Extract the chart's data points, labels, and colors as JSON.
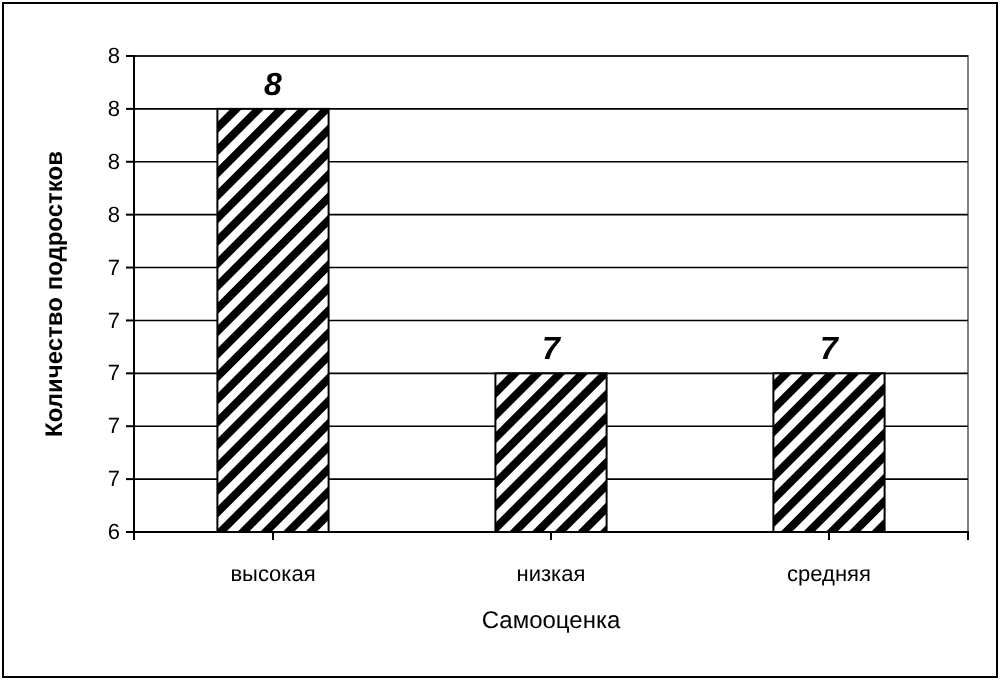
{
  "chart_data": {
    "type": "bar",
    "xlabel": "Самооценка",
    "ylabel": "Количество подростков",
    "categories": [
      "высокая",
      "низкая",
      "средняя"
    ],
    "values": [
      8,
      7,
      7
    ],
    "color": "#000000",
    "ylim": [
      6.4,
      8.2
    ],
    "yticks": [
      {
        "value": 6.4,
        "label": "6"
      },
      {
        "value": 6.6,
        "label": "7"
      },
      {
        "value": 6.8,
        "label": "7"
      },
      7,
      {
        "value": 7.2,
        "label": "7"
      },
      {
        "value": 7.4,
        "label": "7"
      },
      {
        "value": 7.6,
        "label": "8"
      },
      {
        "value": 7.8,
        "label": "8"
      },
      8,
      {
        "value": 8.2,
        "label": "8"
      }
    ],
    "grid": "y",
    "data_labels": true
  }
}
